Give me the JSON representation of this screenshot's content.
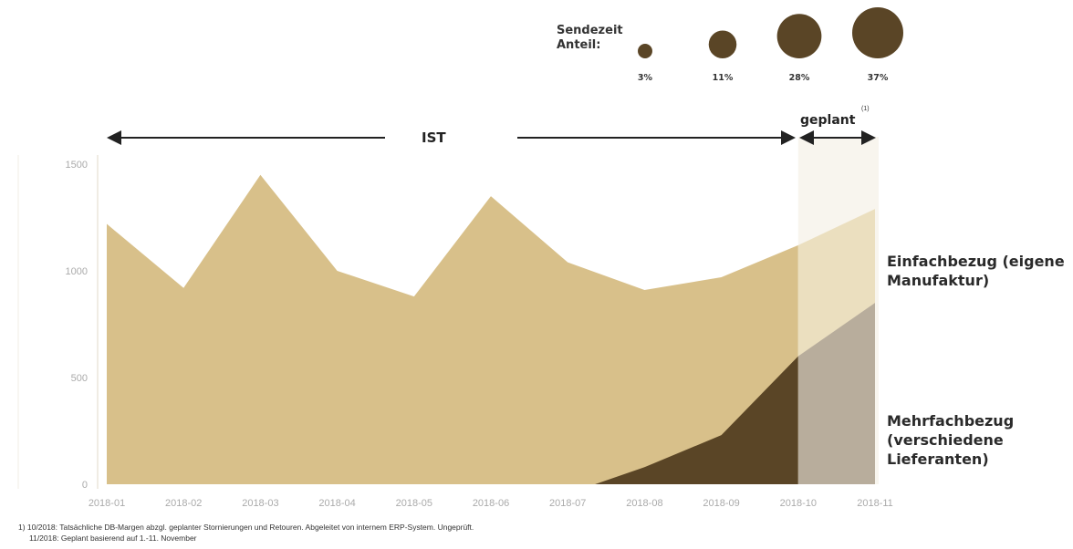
{
  "legend": {
    "title_line1": "Sendezeit",
    "title_line2": "Anteil:",
    "items": [
      {
        "label": "3%",
        "value": 3
      },
      {
        "label": "11%",
        "value": 11
      },
      {
        "label": "28%",
        "value": 28
      },
      {
        "label": "37%",
        "value": 37
      }
    ]
  },
  "periods": {
    "actual_label": "IST",
    "planned_label": "geplant",
    "planned_note_marker": "(1)"
  },
  "series_labels": {
    "einfach_line1": "Einfachbezug (eigene",
    "einfach_line2": "Manufaktur)",
    "mehrfach_line1": "Mehrfachbezug",
    "mehrfach_line2": "(verschiedene",
    "mehrfach_line3": "Lieferanten)"
  },
  "footnotes": {
    "line1": "1) 10/2018: Tatsächliche DB-Margen abzgl. geplanter Stornierungen und Retouren. Abgeleitet von internem ERP-System. Ungeprüft.",
    "line2": "11/2018: Geplant basierend auf 1.-11. November"
  },
  "colors": {
    "einfach": "#d8c08a",
    "einfach_planned": "#ebdfbf",
    "mehrfach": "#5a4526",
    "mehrfach_planned": "#b8ad9c",
    "bubble": "#5a4526",
    "axis_text": "#aaaaaa"
  },
  "chart_data": {
    "type": "area",
    "categories": [
      "2018-01",
      "2018-02",
      "2018-03",
      "2018-04",
      "2018-05",
      "2018-06",
      "2018-07",
      "2018-08",
      "2018-09",
      "2018-10",
      "2018-11"
    ],
    "yticks": [
      0,
      500,
      1000,
      1500
    ],
    "ylim": [
      0,
      1500
    ],
    "series": [
      {
        "name": "Einfachbezug (eigene Manufaktur)",
        "values": [
          1220,
          920,
          1450,
          1000,
          880,
          1350,
          1040,
          910,
          970,
          1120,
          1290
        ]
      },
      {
        "name": "Mehrfachbezug (verschiedene Lieferanten)",
        "values": [
          0,
          0,
          0,
          0,
          0,
          0,
          0,
          80,
          230,
          600,
          850
        ]
      }
    ],
    "planned_from": "2018-10",
    "grid": false
  }
}
